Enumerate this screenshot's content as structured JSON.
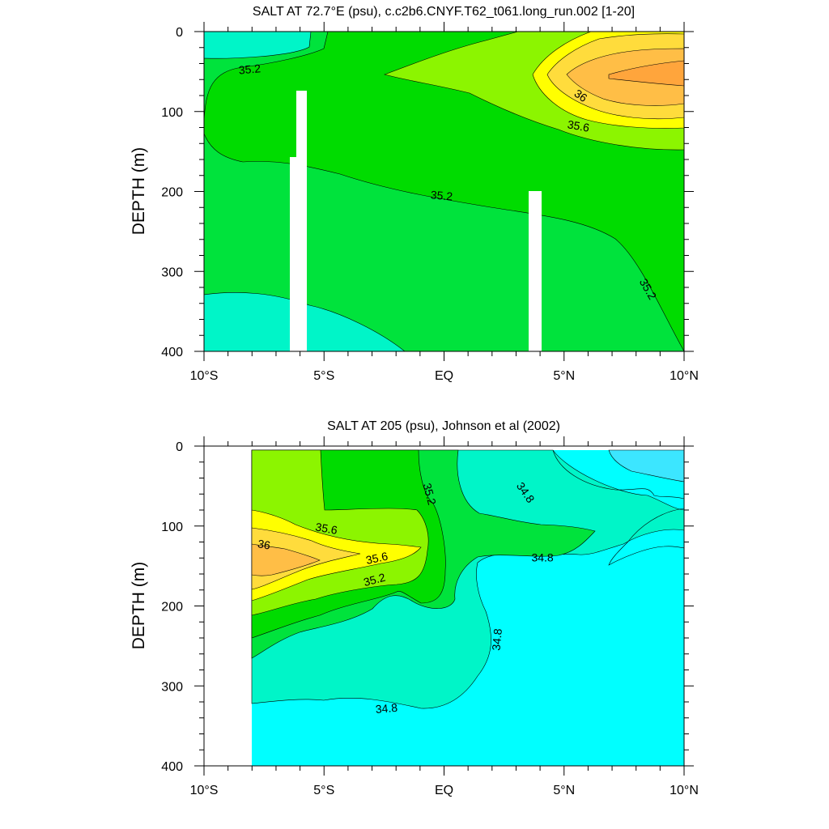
{
  "chart_data": [
    {
      "type": "heatmap",
      "subtype": "filled-contour",
      "title": "SALT AT  72.7°E (psu), c.c2b6.CNYF.T62_t061.long_run.002 [1-20]",
      "xlabel": "",
      "ylabel": "DEPTH (m)",
      "x_tick_values": [
        -10,
        -5,
        0,
        5,
        10
      ],
      "x_tick_labels": [
        "10°S",
        "5°S",
        "EQ",
        "5°N",
        "10°N"
      ],
      "y_tick_values": [
        0,
        100,
        200,
        300,
        400
      ],
      "y_tick_labels": [
        "0",
        "100",
        "200",
        "300",
        "400"
      ],
      "xlim": [
        -10,
        10
      ],
      "ylim": [
        0,
        400
      ],
      "y_inverted": true,
      "contour_interval": 0.2,
      "contour_labels": [
        {
          "text": "35.2",
          "lat": -8.1,
          "depth": 47,
          "angle": -5
        },
        {
          "text": "36",
          "lat": 5.7,
          "depth": 80,
          "angle": 35
        },
        {
          "text": "35.6",
          "lat": 5.6,
          "depth": 118,
          "angle": 10
        },
        {
          "text": "35.2",
          "lat": -0.1,
          "depth": 205,
          "angle": 5
        },
        {
          "text": "35.2",
          "lat": 8.5,
          "depth": 322,
          "angle": 60
        }
      ],
      "levels": [
        {
          "range": "34.8-35.0",
          "color": "#00F5C8"
        },
        {
          "range": "35.0-35.2",
          "color": "#00E33C"
        },
        {
          "range": "35.2-35.4",
          "color": "#00DC00"
        },
        {
          "range": "35.4-35.6",
          "color": "#8CF500"
        },
        {
          "range": "35.6-35.8",
          "color": "#FFFF00"
        },
        {
          "range": "35.8-36.0",
          "color": "#FFDC3C"
        },
        {
          "range": "36.0-36.2",
          "color": "#FFBE46"
        },
        {
          "range": "36.2-36.4",
          "color": "#FFA53C"
        }
      ],
      "missing_data_columns": [
        {
          "lat_range": [
            -6.3,
            -5.6
          ],
          "depth_range": [
            157,
            400
          ]
        },
        {
          "lat_range": [
            -6.0,
            -5.6
          ],
          "depth_range": [
            75,
            157
          ]
        },
        {
          "lat_range": [
            3.6,
            4.1
          ],
          "depth_range": [
            200,
            400
          ]
        }
      ]
    },
    {
      "type": "heatmap",
      "subtype": "filled-contour",
      "title": "SALT AT 205 (psu), Johnson et al (2002)",
      "xlabel": "",
      "ylabel": "DEPTH (m)",
      "x_tick_values": [
        -10,
        -5,
        0,
        5,
        10
      ],
      "x_tick_labels": [
        "10°S",
        "5°S",
        "EQ",
        "5°N",
        "10°N"
      ],
      "y_tick_values": [
        0,
        100,
        200,
        300,
        400
      ],
      "y_tick_labels": [
        "0",
        "100",
        "200",
        "300",
        "400"
      ],
      "xlim": [
        -10,
        10
      ],
      "ylim": [
        0,
        400
      ],
      "y_inverted": true,
      "contour_interval": 0.2,
      "data_extent_lat": [
        -8,
        10
      ],
      "data_extent_depth": [
        5,
        400
      ],
      "contour_labels": [
        {
          "text": "35.2",
          "lat": -0.6,
          "depth": 60,
          "angle": 75
        },
        {
          "text": "34.8",
          "lat": 3.4,
          "depth": 58,
          "angle": 55
        },
        {
          "text": "35.6",
          "lat": -4.9,
          "depth": 103,
          "angle": 10
        },
        {
          "text": "36",
          "lat": -7.5,
          "depth": 123,
          "angle": 10
        },
        {
          "text": "35.6",
          "lat": -2.8,
          "depth": 140,
          "angle": -12
        },
        {
          "text": "34.8",
          "lat": 4.1,
          "depth": 139,
          "angle": 0
        },
        {
          "text": "35.2",
          "lat": -2.9,
          "depth": 167,
          "angle": -15
        },
        {
          "text": "34.8",
          "lat": 2.2,
          "depth": 242,
          "angle": -85
        },
        {
          "text": "34.8",
          "lat": -2.4,
          "depth": 328,
          "angle": -5
        }
      ],
      "levels": [
        {
          "range": "<34.6",
          "color": "#3CE6FF"
        },
        {
          "range": "34.6-34.8",
          "color": "#00FFFF"
        },
        {
          "range": "34.8-35.0",
          "color": "#00F5C8"
        },
        {
          "range": "35.0-35.2",
          "color": "#00E33C"
        },
        {
          "range": "35.2-35.4",
          "color": "#00DC00"
        },
        {
          "range": "35.4-35.6",
          "color": "#8CF500"
        },
        {
          "range": "35.6-35.8",
          "color": "#FFFF00"
        },
        {
          "range": "35.8-36.0",
          "color": "#FFDC3C"
        },
        {
          "range": "36.0-36.2",
          "color": "#FFBE46"
        }
      ]
    }
  ]
}
